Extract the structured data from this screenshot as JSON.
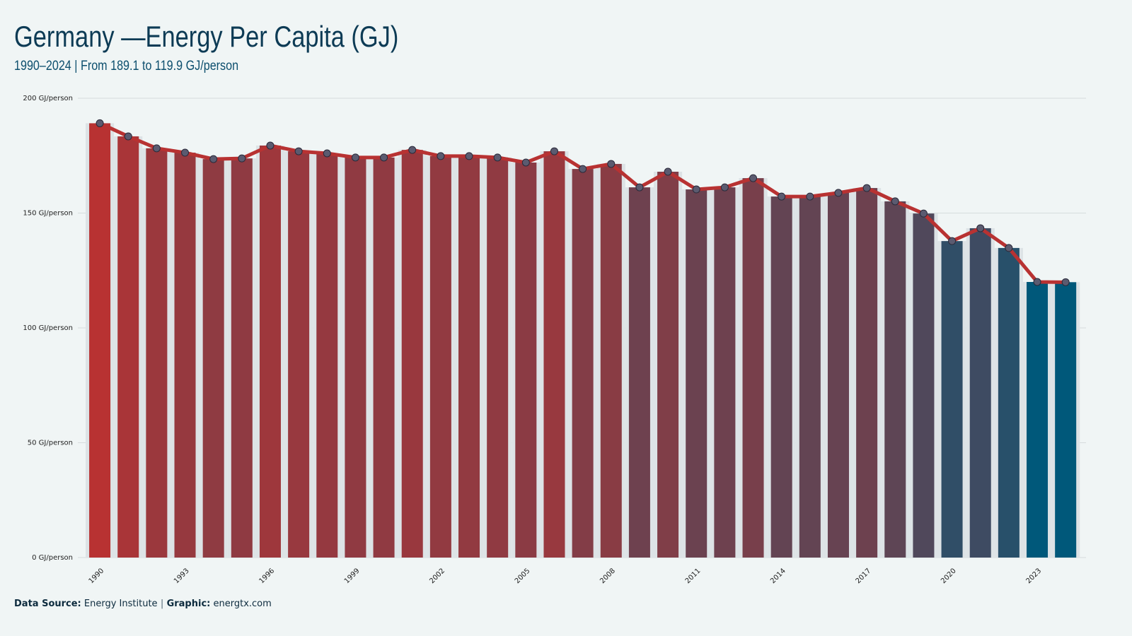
{
  "chart_data": {
    "type": "bar-line",
    "title": "Germany —Energy Per Capita (GJ)",
    "subtitle": "1990–2024 | From 189.1 to 119.9 GJ/person",
    "footer": {
      "source_label": "Data Source:",
      "source": "Energy Institute",
      "separator": "|",
      "graphic_label": "Graphic:",
      "graphic": "energtx.com"
    },
    "categories": [
      "1990",
      null,
      null,
      "1993",
      null,
      null,
      "1996",
      null,
      null,
      "1999",
      null,
      null,
      "2002",
      null,
      null,
      "2005",
      null,
      null,
      "2008",
      null,
      null,
      "2011",
      null,
      null,
      "2014",
      null,
      null,
      "2017",
      null,
      null,
      "2020",
      null,
      null,
      "2023",
      null
    ],
    "values": [
      189.1,
      183.4,
      178.2,
      176.3,
      173.5,
      173.8,
      179.4,
      176.9,
      176.0,
      174.2,
      174.2,
      177.5,
      174.8,
      174.8,
      174.2,
      172.0,
      176.9,
      169.2,
      171.4,
      161.2,
      168.0,
      160.3,
      161.2,
      165.2,
      157.2,
      157.2,
      158.8,
      160.9,
      155.1,
      149.8,
      137.8,
      143.4,
      134.8,
      120.0,
      119.9
    ],
    "color_high": "#b83232",
    "color_low": "#00587a",
    "line_color": "#b83232",
    "marker_color": "#5b5b70",
    "ylim": [
      0,
      200
    ],
    "yticks": [
      {
        "value": 0,
        "label": "0 GJ/person"
      },
      {
        "value": 50,
        "label": "50 GJ/person"
      },
      {
        "value": 100,
        "label": "100 GJ/person"
      },
      {
        "value": 150,
        "label": "150 GJ/person"
      },
      {
        "value": 200,
        "label": "200 GJ/person"
      }
    ],
    "grid": true
  }
}
